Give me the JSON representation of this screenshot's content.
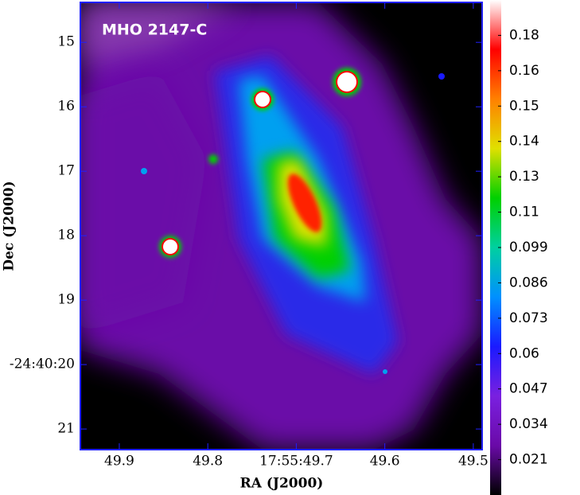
{
  "chart_data": {
    "type": "image",
    "title": "MHO 2147-C",
    "x_label": "RA (J2000)",
    "y_label": "Dec (J2000)",
    "xlim": [
      49.944,
      49.49
    ],
    "xticks": [
      49.9,
      49.8,
      {
        "value": 49.7,
        "label": "17:55:49.7"
      },
      49.6,
      49.5
    ],
    "ylim": [
      21.32,
      14.38
    ],
    "yticks": [
      15,
      16,
      17,
      18,
      19,
      {
        "value": 20,
        "label": "-24:40:20"
      },
      21
    ],
    "clim": [
      0.008,
      0.19
    ],
    "cticks": [
      0.021,
      0.034,
      0.047,
      {
        "value": 0.06,
        "label": "0.06"
      },
      0.073,
      0.086,
      0.099,
      {
        "value": 0.112,
        "label": "0.11"
      },
      {
        "value": 0.125,
        "label": "0.13"
      },
      {
        "value": 0.138,
        "label": "0.14"
      },
      {
        "value": 0.151,
        "label": "0.15"
      },
      {
        "value": 0.164,
        "label": "0.16"
      },
      {
        "value": 0.177,
        "label": "0.18"
      }
    ],
    "colormap": [
      "#000000",
      "#6a0aa8",
      "#7a20e0",
      "#1a1aff",
      "#0090ff",
      "#00d0a0",
      "#00d000",
      "#e0e000",
      "#ff8000",
      "#ff0000",
      "#ffffff"
    ],
    "frame_color": "#2020ff"
  }
}
